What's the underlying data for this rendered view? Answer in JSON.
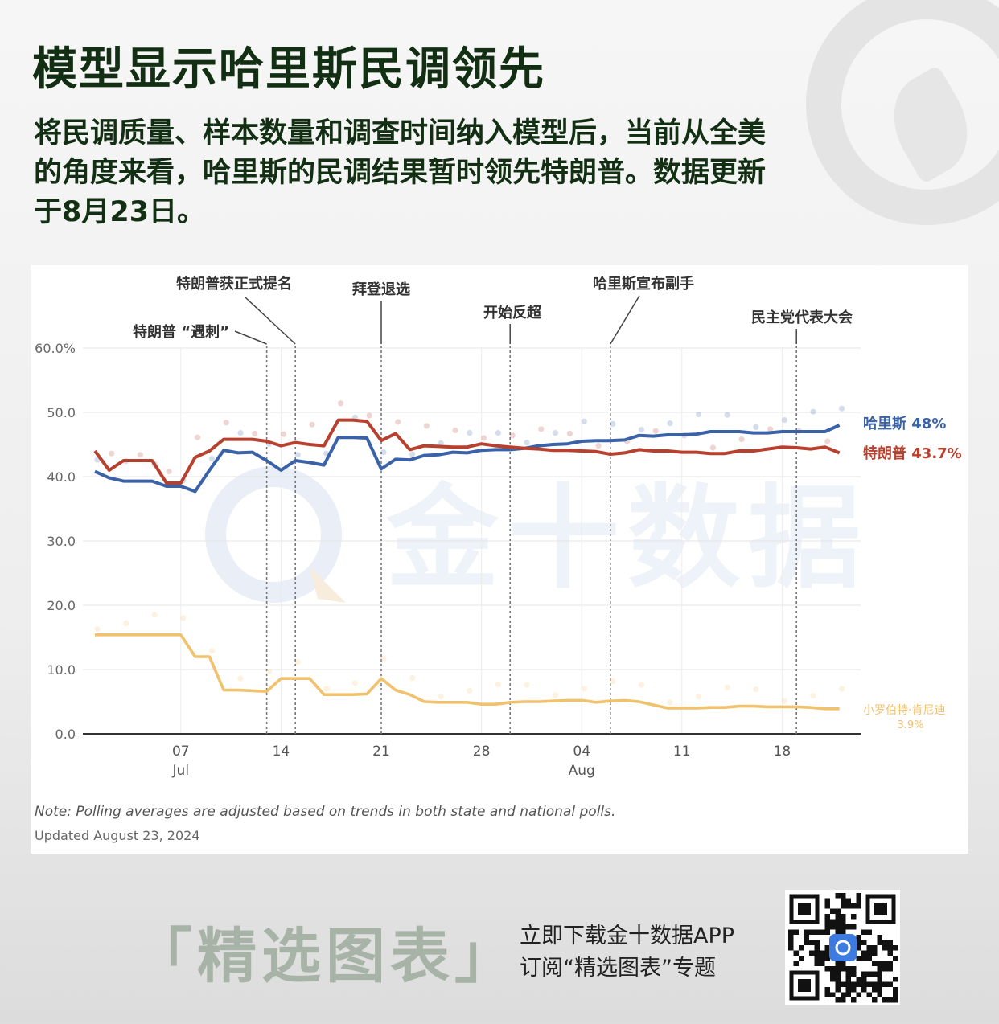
{
  "title": "模型显示哈里斯民调领先",
  "subtitle": "将民调质量、样本数量和调查时间纳入模型后，当前从全美的角度来看，哈里斯的民调结果暂时领先特朗普。数据更新于8月23日。",
  "watermark": "金十数据",
  "note": "Note: Polling averages are adjusted based on trends in both state and national polls.",
  "updated": "Updated August 23, 2024",
  "promo": {
    "label": "「精选图表」",
    "line1": "立即下载金十数据APP",
    "line2": "订阅“精选图表”专题"
  },
  "colors": {
    "harris": "#3a62a8",
    "trump": "#b8402e",
    "kennedy": "#f0c26e",
    "title": "#132f13"
  },
  "chart_data": {
    "type": "line",
    "ylim": [
      0,
      60
    ],
    "yticks": [
      "0.0",
      "10.0",
      "20.0",
      "30.0",
      "40.0",
      "50.0",
      "60.0%"
    ],
    "xticks": [
      {
        "day": 7,
        "label": "07",
        "sub": "Jul"
      },
      {
        "day": 14,
        "label": "14",
        "sub": ""
      },
      {
        "day": 21,
        "label": "21",
        "sub": ""
      },
      {
        "day": 28,
        "label": "28",
        "sub": ""
      },
      {
        "day": 35,
        "label": "04",
        "sub": "Aug"
      },
      {
        "day": 42,
        "label": "11",
        "sub": ""
      },
      {
        "day": 49,
        "label": "18",
        "sub": ""
      }
    ],
    "x": [
      1,
      2,
      3,
      4,
      5,
      6,
      7,
      8,
      9,
      10,
      11,
      12,
      13,
      14,
      15,
      16,
      17,
      18,
      19,
      20,
      21,
      22,
      23,
      24,
      25,
      26,
      27,
      28,
      29,
      30,
      31,
      32,
      33,
      34,
      35,
      36,
      37,
      38,
      39,
      40,
      41,
      42,
      43,
      44,
      45,
      46,
      47,
      48,
      49,
      50,
      51,
      52,
      53
    ],
    "series": [
      {
        "name": "哈里斯",
        "end_label": "48%",
        "color": "#3a62a8",
        "values": [
          40.8,
          39.8,
          39.3,
          39.3,
          39.3,
          38.5,
          38.5,
          37.7,
          41.0,
          44.1,
          43.7,
          43.8,
          42.5,
          41.0,
          42.5,
          42.2,
          41.8,
          46.1,
          46.1,
          46.0,
          41.2,
          42.7,
          42.6,
          43.3,
          43.4,
          43.8,
          43.7,
          44.1,
          44.2,
          44.2,
          44.4,
          44.8,
          45.0,
          45.1,
          45.5,
          45.6,
          45.6,
          45.7,
          46.4,
          46.3,
          46.5,
          46.5,
          46.6,
          47.0,
          47.0,
          47.0,
          46.8,
          46.8,
          47.0,
          47.0,
          47.0,
          47.0,
          48.0
        ]
      },
      {
        "name": "特朗普",
        "end_label": "43.7%",
        "color": "#b8402e",
        "values": [
          44.0,
          41.0,
          42.5,
          42.5,
          42.5,
          39.0,
          39.0,
          43.0,
          44.0,
          45.8,
          45.8,
          45.8,
          45.5,
          44.8,
          45.3,
          45.0,
          44.8,
          48.8,
          48.8,
          48.6,
          45.6,
          46.7,
          44.2,
          44.8,
          44.7,
          44.6,
          44.6,
          45.1,
          44.8,
          44.6,
          44.4,
          44.3,
          44.1,
          44.1,
          44.0,
          43.9,
          43.5,
          43.7,
          44.2,
          44.0,
          44.0,
          43.8,
          43.8,
          43.6,
          43.6,
          44.0,
          44.0,
          44.3,
          44.6,
          44.5,
          44.3,
          44.6,
          43.7
        ]
      },
      {
        "name": "小罗伯特·肯尼迪",
        "end_label": "3.9%",
        "color": "#f0c26e",
        "values": [
          15.4,
          15.4,
          15.4,
          15.4,
          15.4,
          15.4,
          15.4,
          12.0,
          12.0,
          6.8,
          6.8,
          6.7,
          6.6,
          8.6,
          8.6,
          8.6,
          6.1,
          6.1,
          6.1,
          6.2,
          8.6,
          6.8,
          6.1,
          5.0,
          4.9,
          4.9,
          4.9,
          4.6,
          4.6,
          4.9,
          5.0,
          5.0,
          5.1,
          5.2,
          5.2,
          4.9,
          5.1,
          5.2,
          5.0,
          4.5,
          4.0,
          4.0,
          4.0,
          4.1,
          4.1,
          4.3,
          4.3,
          4.2,
          4.2,
          4.2,
          4.1,
          3.9,
          3.9
        ]
      }
    ],
    "annotations": [
      {
        "text": "特朗普 “遇刺”",
        "day": 13
      },
      {
        "text": "特朗普获正式提名",
        "day": 15
      },
      {
        "text": "拜登退选",
        "day": 21
      },
      {
        "text": "开始反超",
        "day": 30
      },
      {
        "text": "哈里斯宣布副手",
        "day": 37
      },
      {
        "text": "民主党代表大会",
        "day": 50
      }
    ]
  }
}
